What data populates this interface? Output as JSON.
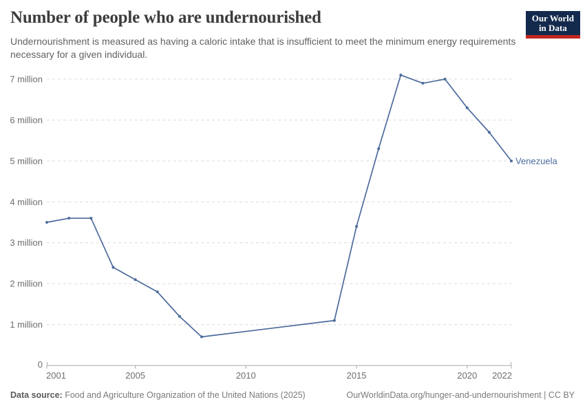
{
  "header": {
    "title": "Number of people who are undernourished",
    "subtitle": "Undernourishment is measured as having a caloric intake that is insufficient to meet the minimum energy requirements necessary for a given individual.",
    "logo": {
      "line1": "Our World",
      "line2": "in Data",
      "bg_color": "#142a4d",
      "accent_color": "#c2281f"
    }
  },
  "chart_data": {
    "type": "line",
    "title": "Number of people who are undernourished",
    "unit_suffix": " million",
    "zero_label": "0",
    "x": [
      2001,
      2002,
      2003,
      2004,
      2005,
      2006,
      2007,
      2008,
      2014,
      2015,
      2016,
      2017,
      2018,
      2019,
      2020,
      2021,
      2022
    ],
    "series": [
      {
        "name": "Venezuela",
        "color": "#4c6a9c",
        "values_millions": [
          3.5,
          3.6,
          3.6,
          2.4,
          2.1,
          1.8,
          1.2,
          0.7,
          1.1,
          3.4,
          5.3,
          7.1,
          6.9,
          7.0,
          6.3,
          5.7,
          5.0
        ]
      }
    ],
    "x_ticks": [
      2001,
      2005,
      2010,
      2015,
      2020,
      2022
    ],
    "y_ticks_millions": [
      0,
      1,
      2,
      3,
      4,
      5,
      6,
      7
    ],
    "xlim": [
      2001,
      2022
    ],
    "ylim_millions": [
      0,
      7.35
    ],
    "grid": "horizontal-dashed",
    "legend_position": "end-of-line-label",
    "colors": {
      "line": "#4c6a9c",
      "grid": "#dcdcdc",
      "axis": "#a8a8a8",
      "tick_text": "#6e6e6e"
    }
  },
  "footer": {
    "source_label": "Data source:",
    "source_text": " Food and Agriculture Organization of the United Nations (2025)",
    "link_text": "OurWorldinData.org/hunger-and-undernourishment | CC BY"
  }
}
